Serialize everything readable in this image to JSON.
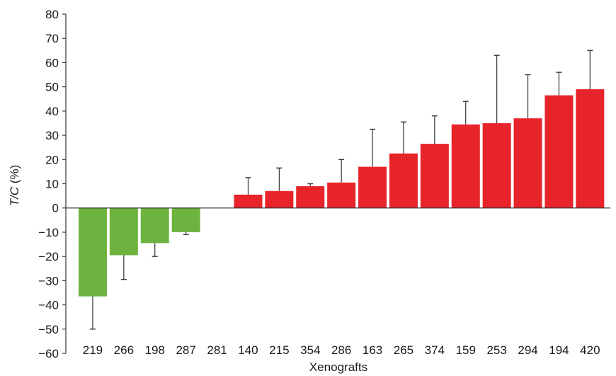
{
  "chart_data": {
    "type": "bar",
    "xlabel": "Xenografts",
    "ylabel": {
      "italic_part": "T/C",
      "rest": " (%)"
    },
    "ylim": [
      -60,
      80
    ],
    "yticks": [
      80,
      70,
      60,
      50,
      40,
      30,
      20,
      10,
      0,
      -10,
      -20,
      -30,
      -40,
      -50,
      -60
    ],
    "ytick_labels": [
      "80",
      "70",
      "60",
      "50",
      "40",
      "30",
      "20",
      "10",
      "0",
      "−10",
      "−20",
      "−30",
      "−40",
      "−50",
      "−60"
    ],
    "categories": [
      "219",
      "266",
      "198",
      "287",
      "281",
      "140",
      "215",
      "354",
      "286",
      "163",
      "265",
      "374",
      "159",
      "253",
      "294",
      "194",
      "420"
    ],
    "values": [
      -36.5,
      -19.5,
      -14.5,
      -10,
      0,
      5.5,
      7,
      9,
      10.5,
      17,
      22.5,
      26.5,
      34.5,
      35,
      37,
      46.5,
      49
    ],
    "error_ends": [
      -50,
      -29.5,
      -20,
      -11,
      null,
      12.5,
      16.5,
      10,
      20,
      32.5,
      35.5,
      38,
      44,
      63,
      55,
      56,
      65
    ],
    "colors": {
      "negative": "#6db33f",
      "positive": "#e8242b",
      "error": "#333333",
      "axis": "#333333"
    },
    "grid": false,
    "legend": "none"
  }
}
